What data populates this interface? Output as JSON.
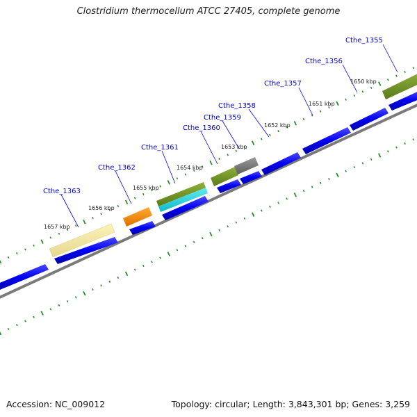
{
  "title": "Clostridium thermocellum ATCC 27405, complete genome",
  "footer": {
    "accession": "Accession: NC_009012",
    "summary": "Topology: circular; Length: 3,843,301 bp; Genes: 3,259"
  },
  "colors": {
    "backbone": "#808080",
    "tick": "#2a8a2a",
    "gene_blue": "#0000ee",
    "gene_label": "#0000cc",
    "leader": "#0000ff"
  },
  "kbp_labels": [
    "1650 kbp",
    "1651 kbp",
    "1652 kbp",
    "1653 kbp",
    "1654 kbp",
    "1655 kbp",
    "1656 kbp",
    "1657 kbp"
  ],
  "gene_labels": [
    "Cthe_1355",
    "Cthe_1356",
    "Cthe_1357",
    "Cthe_1358",
    "Cthe_1359",
    "Cthe_1360",
    "Cthe_1361",
    "Cthe_1362",
    "Cthe_1363"
  ],
  "cog_features": [
    {
      "gene": "Cthe_1355",
      "color": "#6b8e23"
    },
    {
      "gene": "Cthe_1359",
      "color": "#808080"
    },
    {
      "gene": "Cthe_1360",
      "color": "#6b8e23"
    },
    {
      "gene": "Cthe_1361",
      "color": "#6b8e23"
    },
    {
      "gene": "Cthe_1361",
      "color": "#20d0d8"
    },
    {
      "gene": "Cthe_1362",
      "color": "#ff8c00"
    },
    {
      "gene": "Cthe_1363",
      "color": "#f0e68c"
    }
  ]
}
